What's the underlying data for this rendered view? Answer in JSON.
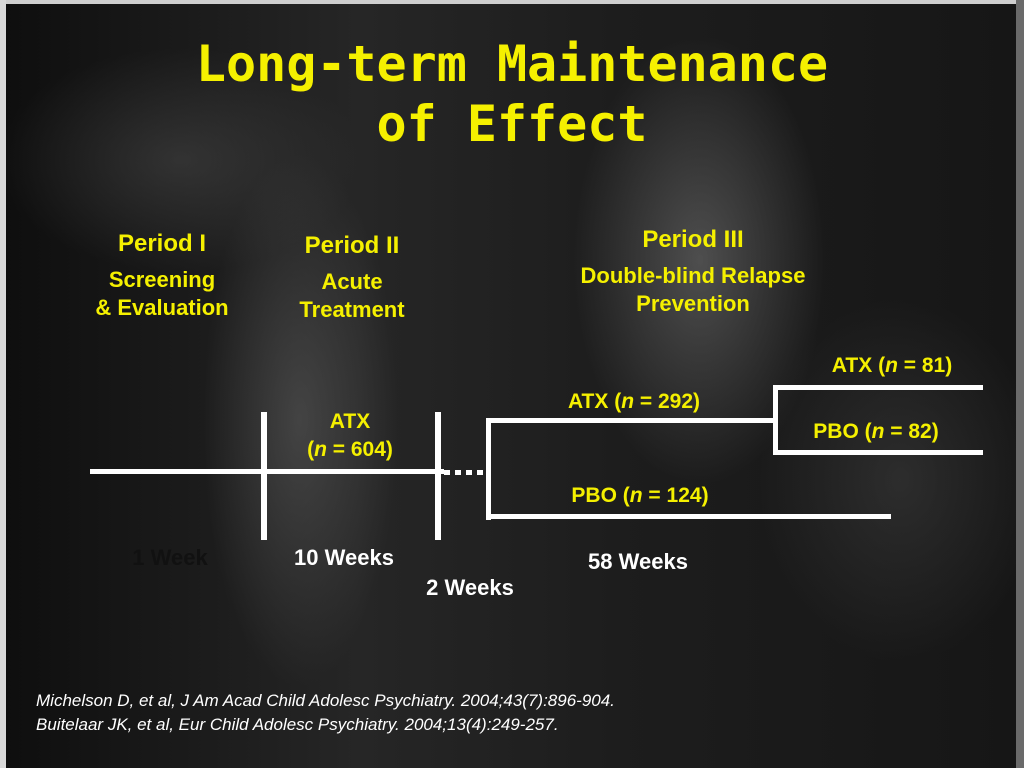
{
  "title": {
    "line1": "Long-term Maintenance",
    "line2": "of Effect"
  },
  "periods": [
    {
      "header": "Period I",
      "desc_line1": "Screening",
      "desc_line2": "& Evaluation"
    },
    {
      "header": "Period II",
      "desc_line1": "Acute",
      "desc_line2": "Treatment"
    },
    {
      "header": "Period III",
      "desc_line1": "Double-blind Relapse",
      "desc_line2": "Prevention"
    }
  ],
  "arms": {
    "atx_initial": {
      "prefix": "ATX",
      "n_open": "(",
      "n": "n",
      "rest": " = 604)"
    },
    "atx_292": {
      "prefix": "ATX (",
      "n": "n",
      "rest": " = 292)"
    },
    "pbo_124": {
      "prefix": "PBO (",
      "n": "n",
      "rest": " = 124)"
    },
    "atx_81": {
      "prefix": "ATX (",
      "n": "n",
      "rest": " = 81)"
    },
    "pbo_82": {
      "prefix": "PBO (",
      "n": "n",
      "rest": " = 82)"
    }
  },
  "durations": {
    "week1": "1 Week",
    "weeks10": "10 Weeks",
    "weeks2": "2 Weeks",
    "weeks58": "58 Weeks"
  },
  "references": [
    "Michelson D, et al, J Am Acad Child Adolesc Psychiatry. 2004;43(7):896-904.",
    "Buitelaar JK, et al, Eur Child Adolesc Psychiatry. 2004;13(4):249-257."
  ],
  "colors": {
    "accent": "#f5f000",
    "line": "#ffffff",
    "background": "#141414"
  }
}
